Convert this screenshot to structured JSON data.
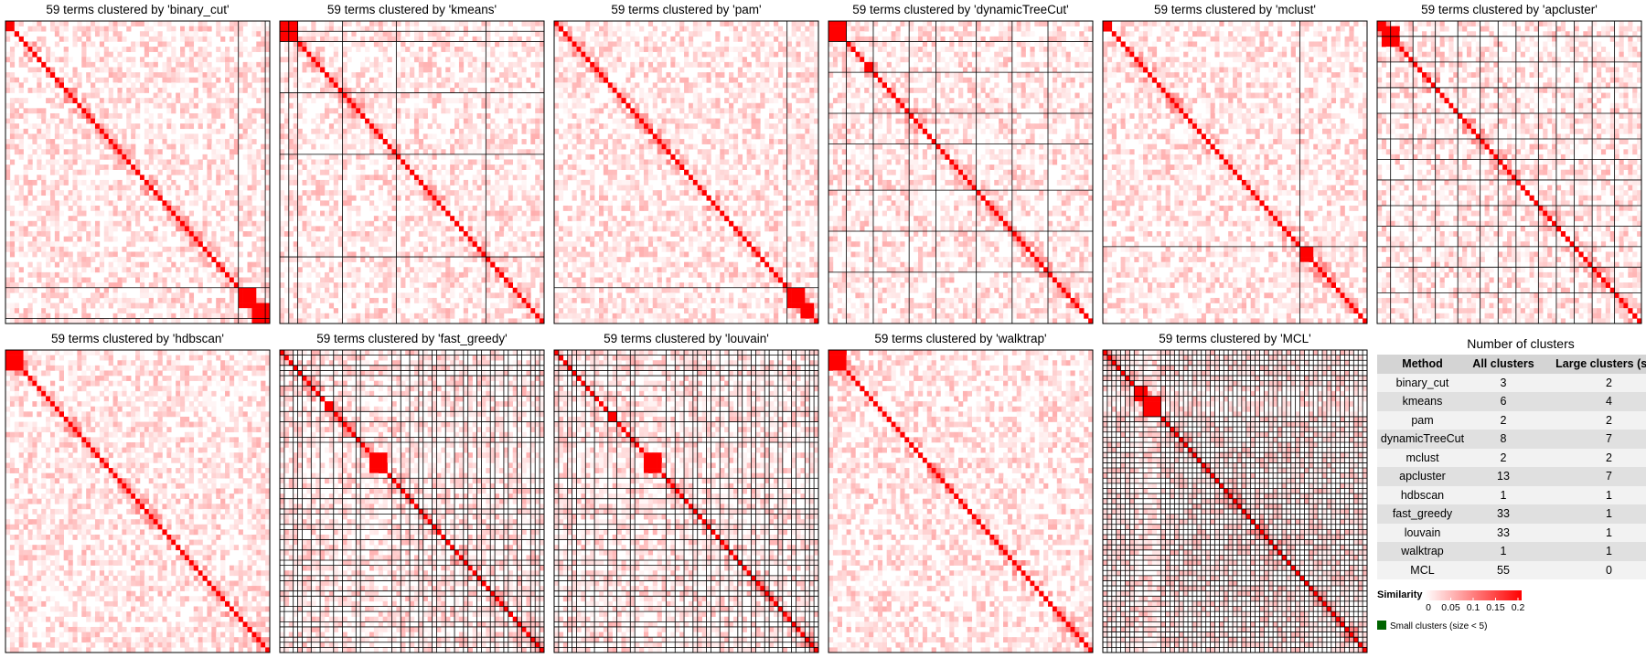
{
  "panels": [
    {
      "title": "59 terms clustered by 'binary_cut'"
    },
    {
      "title": "59 terms clustered by 'kmeans'"
    },
    {
      "title": "59 terms clustered by 'pam'"
    },
    {
      "title": "59 terms clustered by 'dynamicTreeCut'"
    },
    {
      "title": "59 terms clustered by 'mclust'"
    },
    {
      "title": "59 terms clustered by 'apcluster'"
    },
    {
      "title": "59 terms clustered by 'hdbscan'"
    },
    {
      "title": "59 terms clustered by 'fast_greedy'"
    },
    {
      "title": "59 terms clustered by 'louvain'"
    },
    {
      "title": "59 terms clustered by 'walktrap'"
    },
    {
      "title": "59 terms clustered by 'MCL'"
    }
  ],
  "table": {
    "title": "Number of clusters",
    "header": [
      "Method",
      "All clusters",
      "Large clusters (size"
    ],
    "rows": [
      [
        "binary_cut",
        3,
        2
      ],
      [
        "kmeans",
        6,
        4
      ],
      [
        "pam",
        2,
        2
      ],
      [
        "dynamicTreeCut",
        8,
        7
      ],
      [
        "mclust",
        2,
        2
      ],
      [
        "apcluster",
        13,
        7
      ],
      [
        "hdbscan",
        1,
        1
      ],
      [
        "fast_greedy",
        33,
        1
      ],
      [
        "louvain",
        33,
        1
      ],
      [
        "walktrap",
        1,
        1
      ],
      [
        "MCL",
        55,
        0
      ]
    ]
  },
  "legend": {
    "title": "Similarity",
    "lim": [
      0,
      0.2
    ],
    "ticks": [
      0,
      0.05,
      0.1,
      0.15,
      0.2
    ],
    "small_clusters_label": "Small clusters (size < 5)",
    "small_clusters_color": "#006400"
  }
}
